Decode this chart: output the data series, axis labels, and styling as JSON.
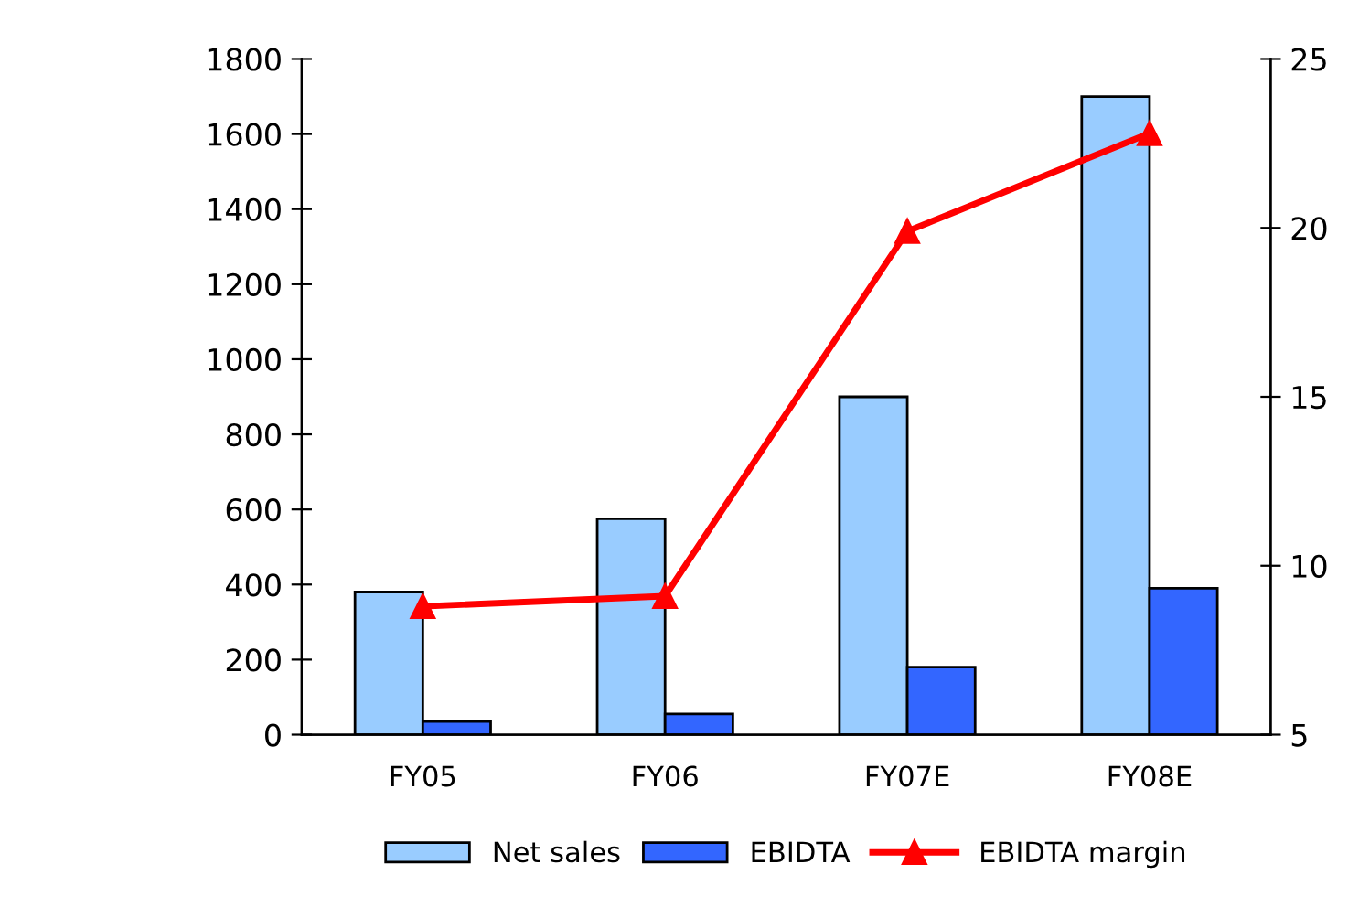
{
  "chart_data": {
    "type": "bar",
    "categories": [
      "FY05",
      "FY06",
      "FY07E",
      "FY08E"
    ],
    "series": [
      {
        "name": "Net sales",
        "color": "#99ccff",
        "values": [
          380,
          575,
          900,
          1700
        ]
      },
      {
        "name": "EBIDTA",
        "color": "#3366ff",
        "values": [
          35,
          55,
          180,
          390
        ]
      },
      {
        "name": "EBIDTA margin",
        "type": "line",
        "axis": "y2",
        "color": "#ff0000",
        "marker": "triangle",
        "values": [
          8.8,
          9.1,
          19.9,
          22.8
        ]
      }
    ],
    "ylim": [
      0,
      1800
    ],
    "yticks": [
      0,
      200,
      400,
      600,
      800,
      1000,
      1200,
      1400,
      1600,
      1800
    ],
    "y2lim": [
      5,
      25
    ],
    "y2ticks": [
      5,
      10,
      15,
      20,
      25
    ],
    "grid": false,
    "legend": "bottom"
  }
}
